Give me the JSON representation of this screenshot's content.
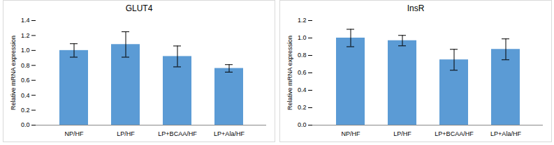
{
  "chart_data": [
    {
      "type": "bar",
      "title": "GLUT4",
      "y_label": "Relative mRNA expression",
      "categories": [
        "NP/HF",
        "LP/HF",
        "LP+BCAA/HF",
        "LP+Ala/HF"
      ],
      "values": [
        1.0,
        1.08,
        0.92,
        0.76
      ],
      "errors": [
        0.09,
        0.17,
        0.14,
        0.05
      ],
      "color": "#5b9bd5",
      "ylim": [
        0,
        1.4
      ],
      "yticks": [
        {
          "value": 0,
          "label": "0.0"
        },
        0.2,
        0.4,
        0.6,
        0.8,
        {
          "value": 1,
          "label": "1.0"
        },
        1.2,
        1.4
      ],
      "grid": false
    },
    {
      "type": "bar",
      "title": "InsR",
      "y_label": "Relative mRNA expression",
      "categories": [
        "NP/HF",
        "LP/HF",
        "LP+BCAA/HF",
        "LP+Ala/HF"
      ],
      "values": [
        1.0,
        0.97,
        0.75,
        0.87
      ],
      "errors": [
        0.1,
        0.06,
        0.12,
        0.12
      ],
      "color": "#5b9bd5",
      "ylim": [
        0,
        1.2
      ],
      "yticks": [
        {
          "value": 0,
          "label": "0.0"
        },
        0.2,
        0.4,
        0.6,
        0.8,
        {
          "value": 1,
          "label": "1.0"
        },
        1.2
      ],
      "grid": false
    }
  ]
}
